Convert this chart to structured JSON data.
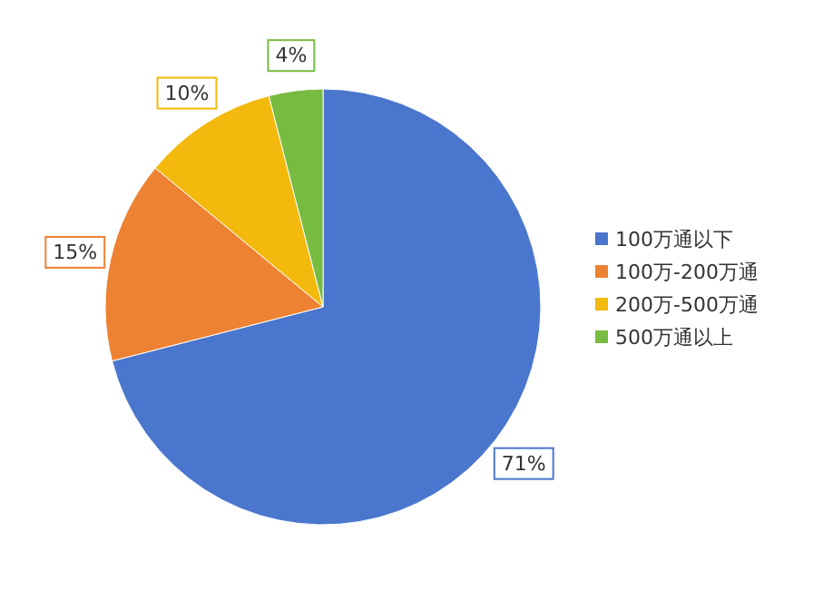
{
  "chart_data": {
    "type": "pie",
    "categories": [
      "100万通以下",
      "100万-200万通",
      "200万-500万通",
      "500万通以上"
    ],
    "values": [
      71,
      15,
      10,
      4
    ],
    "colors": [
      "#4a76cd",
      "#ee8233",
      "#f3b90c",
      "#77bb41"
    ],
    "value_labels": [
      "71%",
      "15%",
      "10%",
      "4%"
    ],
    "legend": "right"
  }
}
